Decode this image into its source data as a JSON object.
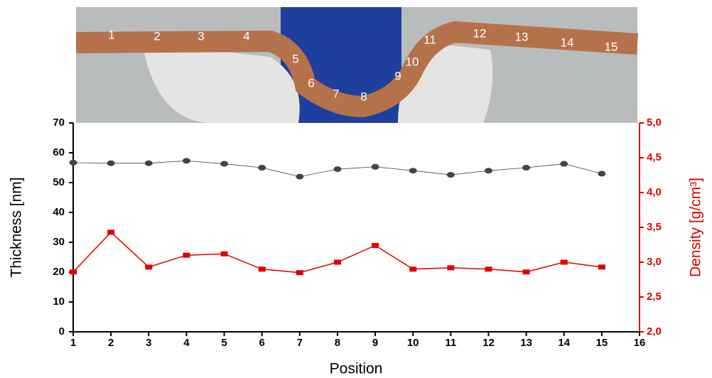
{
  "photo": {
    "labels": [
      "1",
      "2",
      "3",
      "4",
      "5",
      "6",
      "7",
      "8",
      "9",
      "10",
      "11",
      "12",
      "13",
      "14",
      "15"
    ]
  },
  "chart_data": {
    "type": "line",
    "xlabel": "Position",
    "ylabel": "Thickness [nm]",
    "y2label": "Density [g/cm³]",
    "x": [
      1,
      2,
      3,
      4,
      5,
      6,
      7,
      8,
      9,
      10,
      11,
      12,
      13,
      14,
      15
    ],
    "xlim": [
      1,
      16
    ],
    "xticks": [
      1,
      2,
      3,
      4,
      5,
      6,
      7,
      8,
      9,
      10,
      11,
      12,
      13,
      14,
      15,
      16
    ],
    "ylim": [
      0,
      70
    ],
    "yticks": [
      0,
      10,
      20,
      30,
      40,
      50,
      60,
      70
    ],
    "y2lim": [
      2.0,
      5.0
    ],
    "y2ticks": [
      {
        "value": 2.0,
        "label": "2,0"
      },
      {
        "value": 2.5,
        "label": "2,5"
      },
      {
        "value": 3.0,
        "label": "3,0"
      },
      {
        "value": 3.5,
        "label": "3,5"
      },
      {
        "value": 4.0,
        "label": "4,0"
      },
      {
        "value": 4.5,
        "label": "4,5"
      },
      {
        "value": 5.0,
        "label": "5,0"
      }
    ],
    "y2color": "#e00000",
    "series": [
      {
        "color": "#444444",
        "marker": "circle",
        "axis": "y",
        "values": [
          56.7,
          56.5,
          56.5,
          57.3,
          56.3,
          55,
          52,
          54.5,
          55.3,
          54,
          52.6,
          54,
          55,
          56.3,
          53
        ]
      },
      {
        "color": "#e00000",
        "marker": "square",
        "axis": "y2",
        "values": [
          2.86,
          3.43,
          2.93,
          3.1,
          3.12,
          2.9,
          2.85,
          3.0,
          3.24,
          2.9,
          2.92,
          2.9,
          2.86,
          3.0,
          2.93
        ]
      }
    ]
  }
}
